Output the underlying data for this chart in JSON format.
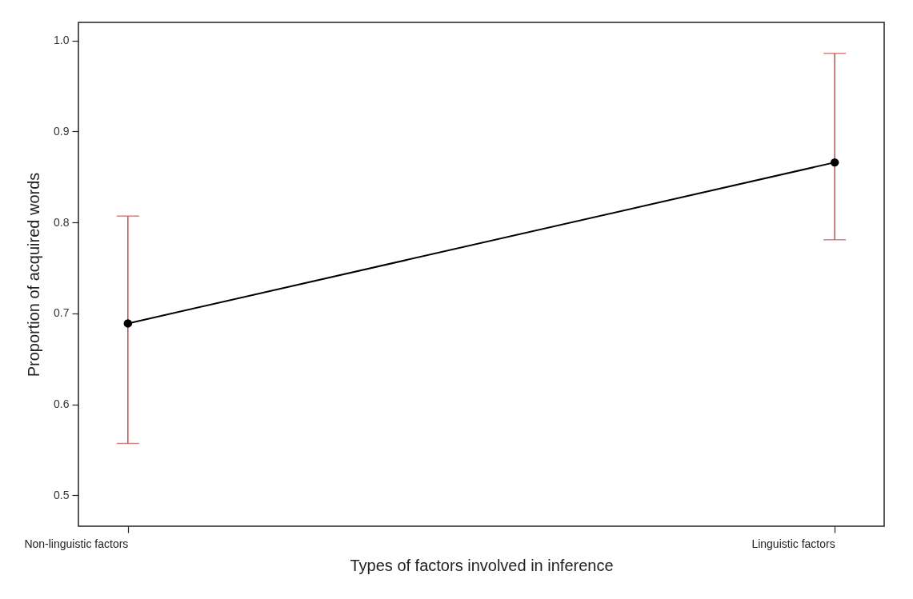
{
  "chart_data": {
    "type": "line",
    "xlabel": "Types of factors involved in inference",
    "ylabel": "Proportion of acquired words",
    "categories": [
      "Non-linguistic factors",
      "Linguistic factors"
    ],
    "series": [
      {
        "color": "#000000",
        "values": [
          0.689,
          0.866
        ],
        "errors": [
          [
            0.557,
            0.807
          ],
          [
            0.781,
            0.986
          ]
        ]
      }
    ],
    "ylim": [
      0.466,
      1.02
    ],
    "yticks": [
      0.5,
      0.6,
      0.7,
      0.8,
      0.9,
      {
        "value": 1,
        "label": "1.0"
      }
    ],
    "marker": "circle",
    "line_style": "solid",
    "grid": false
  }
}
